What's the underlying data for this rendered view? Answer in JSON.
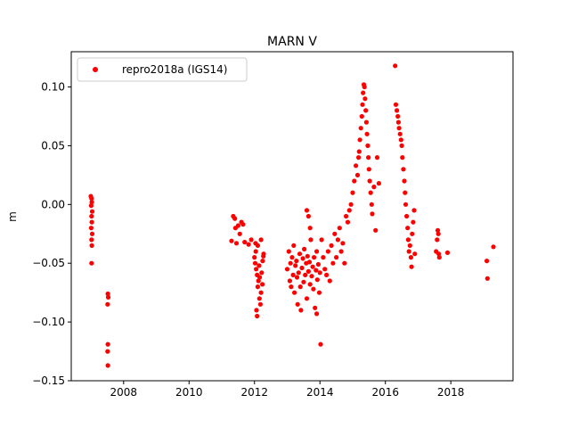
{
  "chart_data": {
    "type": "scatter",
    "title": "MARN V",
    "xlabel": "",
    "ylabel": "m",
    "xlim": [
      2006.4,
      2019.9
    ],
    "ylim": [
      -0.15,
      0.13
    ],
    "xticks": [
      2008,
      2010,
      2012,
      2014,
      2016,
      2018
    ],
    "yticks": [
      -0.15,
      -0.1,
      -0.05,
      0.0,
      0.05,
      0.1
    ],
    "xtick_labels": [
      "2008",
      "2010",
      "2012",
      "2014",
      "2016",
      "2018"
    ],
    "ytick_labels": [
      "−0.15",
      "−0.10",
      "−0.05",
      "0.00",
      "0.05",
      "0.10"
    ],
    "grid": false,
    "legend_position": "upper-left",
    "series": [
      {
        "name": "repro2018a (IGS14)",
        "color": "#ff0000",
        "marker": "circle",
        "points": [
          [
            2007.0,
            0.007
          ],
          [
            2007.02,
            0.005
          ],
          [
            2007.03,
            0.002
          ],
          [
            2007.01,
            -0.001
          ],
          [
            2007.04,
            -0.006
          ],
          [
            2007.02,
            -0.01
          ],
          [
            2007.03,
            -0.015
          ],
          [
            2007.01,
            -0.02
          ],
          [
            2007.04,
            -0.025
          ],
          [
            2007.02,
            -0.03
          ],
          [
            2007.03,
            -0.035
          ],
          [
            2007.02,
            -0.05
          ],
          [
            2007.52,
            -0.076
          ],
          [
            2007.53,
            -0.079
          ],
          [
            2007.51,
            -0.085
          ],
          [
            2007.52,
            -0.119
          ],
          [
            2007.51,
            -0.125
          ],
          [
            2007.52,
            -0.137
          ],
          [
            2011.35,
            -0.01
          ],
          [
            2011.4,
            -0.012
          ],
          [
            2011.42,
            -0.02
          ],
          [
            2011.5,
            -0.018
          ],
          [
            2011.55,
            -0.025
          ],
          [
            2011.6,
            -0.015
          ],
          [
            2011.65,
            -0.017
          ],
          [
            2011.7,
            -0.032
          ],
          [
            2011.45,
            -0.033
          ],
          [
            2011.3,
            -0.031
          ],
          [
            2011.82,
            -0.034
          ],
          [
            2011.9,
            -0.03
          ],
          [
            2012.0,
            -0.045
          ],
          [
            2012.02,
            -0.05
          ],
          [
            2012.05,
            -0.055
          ],
          [
            2012.08,
            -0.06
          ],
          [
            2012.1,
            -0.07
          ],
          [
            2012.12,
            -0.065
          ],
          [
            2012.04,
            -0.04
          ],
          [
            2012.15,
            -0.08
          ],
          [
            2012.18,
            -0.085
          ],
          [
            2012.06,
            -0.09
          ],
          [
            2012.08,
            -0.095
          ],
          [
            2012.2,
            -0.075
          ],
          [
            2012.22,
            -0.058
          ],
          [
            2012.25,
            -0.048
          ],
          [
            2012.14,
            -0.052
          ],
          [
            2012.16,
            -0.062
          ],
          [
            2012.24,
            -0.068
          ],
          [
            2012.1,
            -0.035
          ],
          [
            2012.2,
            -0.03
          ],
          [
            2012.03,
            -0.033
          ],
          [
            2012.28,
            -0.042
          ],
          [
            2012.27,
            -0.044
          ],
          [
            2013.0,
            -0.055
          ],
          [
            2013.05,
            -0.04
          ],
          [
            2013.08,
            -0.065
          ],
          [
            2013.1,
            -0.05
          ],
          [
            2013.12,
            -0.07
          ],
          [
            2013.15,
            -0.045
          ],
          [
            2013.18,
            -0.06
          ],
          [
            2013.2,
            -0.035
          ],
          [
            2013.22,
            -0.075
          ],
          [
            2013.25,
            -0.052
          ],
          [
            2013.28,
            -0.048
          ],
          [
            2013.3,
            -0.062
          ],
          [
            2013.32,
            -0.085
          ],
          [
            2013.35,
            -0.058
          ],
          [
            2013.38,
            -0.042
          ],
          [
            2013.4,
            -0.07
          ],
          [
            2013.42,
            -0.09
          ],
          [
            2013.45,
            -0.054
          ],
          [
            2013.48,
            -0.046
          ],
          [
            2013.5,
            -0.066
          ],
          [
            2013.52,
            -0.038
          ],
          [
            2013.55,
            -0.06
          ],
          [
            2013.58,
            -0.05
          ],
          [
            2013.6,
            -0.08
          ],
          [
            2013.62,
            -0.044
          ],
          [
            2013.65,
            -0.057
          ],
          [
            2013.68,
            -0.049
          ],
          [
            2013.7,
            -0.068
          ],
          [
            2013.72,
            -0.03
          ],
          [
            2013.75,
            -0.061
          ],
          [
            2013.78,
            -0.053
          ],
          [
            2013.8,
            -0.072
          ],
          [
            2013.82,
            -0.045
          ],
          [
            2013.85,
            -0.088
          ],
          [
            2013.88,
            -0.056
          ],
          [
            2013.9,
            -0.04
          ],
          [
            2013.92,
            -0.064
          ],
          [
            2013.95,
            -0.051
          ],
          [
            2013.98,
            -0.075
          ],
          [
            2014.0,
            -0.058
          ],
          [
            2013.6,
            -0.005
          ],
          [
            2013.65,
            -0.01
          ],
          [
            2013.7,
            -0.02
          ],
          [
            2014.02,
            -0.119
          ],
          [
            2013.9,
            -0.093
          ],
          [
            2014.05,
            -0.03
          ],
          [
            2014.1,
            -0.045
          ],
          [
            2014.15,
            -0.055
          ],
          [
            2014.2,
            -0.06
          ],
          [
            2014.25,
            -0.04
          ],
          [
            2014.3,
            -0.065
          ],
          [
            2014.35,
            -0.035
          ],
          [
            2014.4,
            -0.05
          ],
          [
            2014.45,
            -0.025
          ],
          [
            2014.5,
            -0.045
          ],
          [
            2014.55,
            -0.03
          ],
          [
            2014.6,
            -0.02
          ],
          [
            2014.65,
            -0.04
          ],
          [
            2014.7,
            -0.033
          ],
          [
            2014.75,
            -0.05
          ],
          [
            2014.8,
            -0.01
          ],
          [
            2014.85,
            -0.015
          ],
          [
            2014.9,
            -0.005
          ],
          [
            2014.95,
            0.0
          ],
          [
            2015.0,
            0.01
          ],
          [
            2015.05,
            0.02
          ],
          [
            2015.1,
            0.033
          ],
          [
            2015.15,
            0.025
          ],
          [
            2015.18,
            0.04
          ],
          [
            2015.2,
            0.045
          ],
          [
            2015.22,
            0.055
          ],
          [
            2015.25,
            0.065
          ],
          [
            2015.28,
            0.075
          ],
          [
            2015.3,
            0.085
          ],
          [
            2015.32,
            0.095
          ],
          [
            2015.34,
            0.102
          ],
          [
            2015.36,
            0.1
          ],
          [
            2015.38,
            0.09
          ],
          [
            2015.4,
            0.08
          ],
          [
            2015.42,
            0.07
          ],
          [
            2015.44,
            0.06
          ],
          [
            2015.46,
            0.05
          ],
          [
            2015.48,
            0.04
          ],
          [
            2015.5,
            0.03
          ],
          [
            2015.52,
            0.02
          ],
          [
            2015.55,
            0.01
          ],
          [
            2015.58,
            0.0
          ],
          [
            2015.6,
            -0.008
          ],
          [
            2015.65,
            0.015
          ],
          [
            2015.7,
            -0.022
          ],
          [
            2015.75,
            0.04
          ],
          [
            2015.8,
            0.018
          ],
          [
            2016.3,
            0.118
          ],
          [
            2016.32,
            0.085
          ],
          [
            2016.35,
            0.08
          ],
          [
            2016.38,
            0.075
          ],
          [
            2016.4,
            0.07
          ],
          [
            2016.42,
            0.065
          ],
          [
            2016.45,
            0.06
          ],
          [
            2016.48,
            0.055
          ],
          [
            2016.5,
            0.05
          ],
          [
            2016.52,
            0.04
          ],
          [
            2016.55,
            0.03
          ],
          [
            2016.58,
            0.02
          ],
          [
            2016.6,
            0.01
          ],
          [
            2016.62,
            0.0
          ],
          [
            2016.65,
            -0.01
          ],
          [
            2016.68,
            -0.02
          ],
          [
            2016.7,
            -0.03
          ],
          [
            2016.72,
            -0.04
          ],
          [
            2016.75,
            -0.035
          ],
          [
            2016.78,
            -0.045
          ],
          [
            2016.8,
            -0.053
          ],
          [
            2016.82,
            -0.025
          ],
          [
            2016.85,
            -0.015
          ],
          [
            2016.88,
            -0.005
          ],
          [
            2016.9,
            -0.042
          ],
          [
            2017.6,
            -0.022
          ],
          [
            2017.62,
            -0.025
          ],
          [
            2017.58,
            -0.03
          ],
          [
            2017.55,
            -0.04
          ],
          [
            2017.65,
            -0.045
          ],
          [
            2017.63,
            -0.042
          ],
          [
            2017.9,
            -0.041
          ],
          [
            2019.1,
            -0.048
          ],
          [
            2019.12,
            -0.063
          ],
          [
            2019.3,
            -0.036
          ]
        ]
      }
    ]
  }
}
